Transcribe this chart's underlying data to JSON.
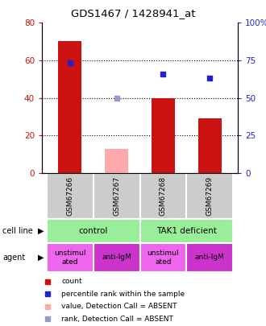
{
  "title": "GDS1467 / 1428941_at",
  "samples": [
    "GSM67266",
    "GSM67267",
    "GSM67268",
    "GSM67269"
  ],
  "bar_values": [
    70,
    13,
    40,
    29
  ],
  "bar_absent": [
    false,
    true,
    false,
    false
  ],
  "rank_values": [
    73,
    50,
    66,
    63
  ],
  "rank_absent": [
    false,
    true,
    false,
    false
  ],
  "ylim_left": [
    0,
    80
  ],
  "ylim_right": [
    0,
    100
  ],
  "yticks_left": [
    0,
    20,
    40,
    60,
    80
  ],
  "ytick_labels_left": [
    "0",
    "20",
    "40",
    "60",
    "80"
  ],
  "yticks_right": [
    0,
    25,
    50,
    75,
    100
  ],
  "ytick_labels_right": [
    "0",
    "25",
    "50",
    "75",
    "100%"
  ],
  "bar_color_normal": "#cc1111",
  "bar_color_absent": "#ffaaaa",
  "rank_color_normal": "#2222cc",
  "rank_color_absent": "#9999cc",
  "bar_width": 0.5,
  "cell_line_labels": [
    "control",
    "TAK1 deficient"
  ],
  "cell_line_spans": [
    [
      0,
      2
    ],
    [
      2,
      4
    ]
  ],
  "cell_line_color": "#99ee99",
  "agent_labels": [
    "unstimul\nated",
    "anti-IgM",
    "unstimul\nated",
    "anti-IgM"
  ],
  "agent_colors": [
    "#ee66ee",
    "#cc33cc",
    "#ee66ee",
    "#cc33cc"
  ],
  "sample_box_color": "#cccccc",
  "gridline_y": [
    20,
    40,
    60
  ],
  "legend_items": [
    {
      "color": "#cc1111",
      "label": "count"
    },
    {
      "color": "#2222cc",
      "label": "percentile rank within the sample"
    },
    {
      "color": "#ffaaaa",
      "label": "value, Detection Call = ABSENT"
    },
    {
      "color": "#9999cc",
      "label": "rank, Detection Call = ABSENT"
    }
  ]
}
